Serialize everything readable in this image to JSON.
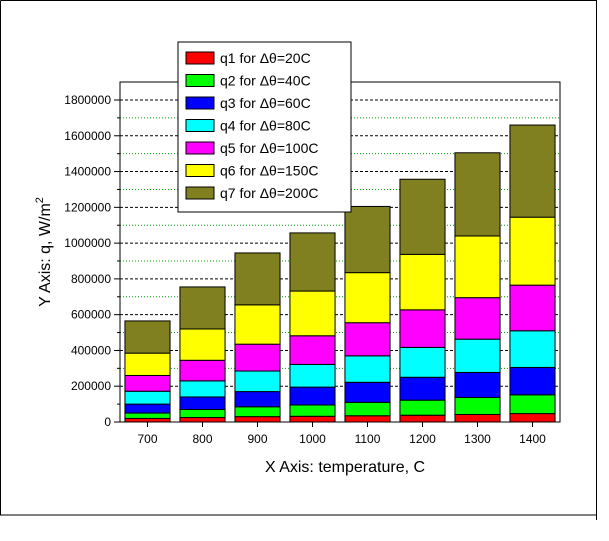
{
  "chart_data": {
    "type": "bar",
    "stacked": true,
    "categories": [
      "700",
      "800",
      "900",
      "1000",
      "1100",
      "1200",
      "1300",
      "1400"
    ],
    "series": [
      {
        "name": "q1 for Δθ=20C",
        "color": "#ff0000",
        "values": [
          20000,
          25000,
          30000,
          32000,
          35000,
          38000,
          42000,
          47000
        ]
      },
      {
        "name": "q2 for Δθ=40C",
        "color": "#00ff00",
        "values": [
          30000,
          45000,
          55000,
          63000,
          75000,
          84000,
          95000,
          105000
        ]
      },
      {
        "name": "q3 for Δθ=60C",
        "color": "#0000ff",
        "values": [
          50000,
          70000,
          85000,
          100000,
          112000,
          128000,
          140000,
          153000
        ]
      },
      {
        "name": "q4 for Δθ=80C",
        "color": "#00ffff",
        "values": [
          72000,
          90000,
          115000,
          127000,
          148000,
          167000,
          186000,
          205000
        ]
      },
      {
        "name": "q5 for Δθ=100C",
        "color": "#ff00ff",
        "values": [
          88000,
          115000,
          150000,
          160000,
          185000,
          210000,
          232000,
          255000
        ]
      },
      {
        "name": "q6 for Δθ=150C",
        "color": "#ffff00",
        "values": [
          125000,
          175000,
          220000,
          250000,
          280000,
          310000,
          345000,
          380000
        ]
      },
      {
        "name": "q7 for Δθ=200C",
        "color": "#808020",
        "values": [
          180000,
          235000,
          290000,
          325000,
          370000,
          420000,
          465000,
          515000
        ]
      }
    ],
    "totals": [
      565000,
      755000,
      945000,
      1057000,
      1205000,
      1357000,
      1505000,
      1660000
    ],
    "xlabel": "X Axis: temperature, C",
    "ylabel_prefix": "Y Axis: q, W/m",
    "ylabel_superscript": "2",
    "ylim": [
      0,
      1800000
    ],
    "yticks": [
      0,
      200000,
      400000,
      600000,
      800000,
      1000000,
      1200000,
      1400000,
      1600000,
      1800000
    ],
    "ytick_labels": [
      "0",
      "200000",
      "400000",
      "600000",
      "800000",
      "1000000",
      "1200000",
      "1400000",
      "1600000",
      "1800000"
    ],
    "major_gridlines": [
      200000,
      400000,
      600000,
      800000,
      1000000,
      1200000,
      1400000,
      1600000,
      1800000
    ],
    "minor_gridlines": [
      300000,
      500000,
      700000,
      900000,
      1100000,
      1300000,
      1500000,
      1700000
    ],
    "grid": true,
    "legend_position": "top-left",
    "colors": {
      "major_grid": "#000000",
      "minor_grid": "#00a000",
      "bar_stroke": "#000000"
    }
  }
}
